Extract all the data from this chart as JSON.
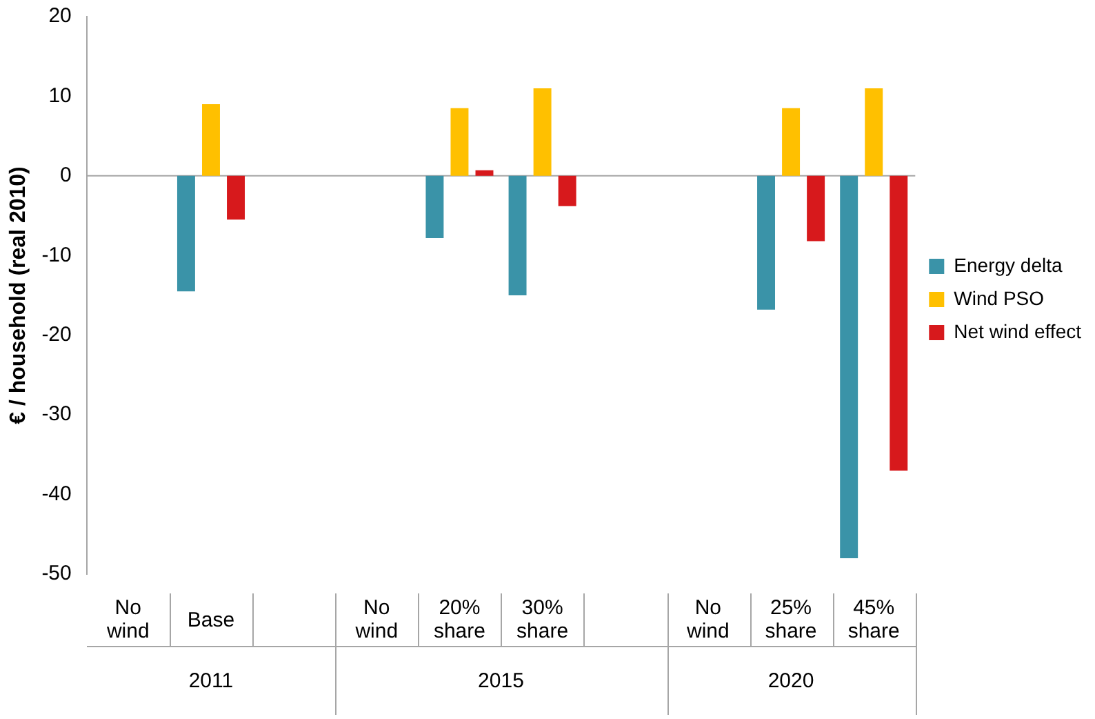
{
  "chart_data": {
    "type": "bar",
    "ylabel": "€ / household (real 2010)",
    "categories": [
      "No wind",
      "Base",
      null,
      "No wind",
      "20% share",
      "30% share",
      null,
      "No wind",
      "25% share",
      "45% share"
    ],
    "series": [
      {
        "name": "Energy delta",
        "color": "#3a93a8",
        "values": [
          null,
          -14.5,
          null,
          null,
          -7.8,
          -15,
          null,
          null,
          -16.8,
          -48
        ]
      },
      {
        "name": "Wind PSO",
        "color": "#ffc000",
        "values": [
          null,
          9,
          null,
          null,
          8.5,
          11,
          null,
          null,
          8.5,
          11
        ]
      },
      {
        "name": "Net wind effect",
        "color": "#d7191c",
        "values": [
          null,
          -5.5,
          null,
          null,
          0.7,
          -3.8,
          null,
          null,
          -8.2,
          -37
        ]
      }
    ],
    "ref_lines": [
      {
        "axis": "y",
        "value": 0,
        "color": "#a6a6a6",
        "line_style": "solid"
      }
    ],
    "ylim": [
      -50,
      20
    ],
    "yticks": [
      -50,
      -40,
      -30,
      -20,
      -10,
      0,
      10,
      20
    ],
    "grid": false,
    "legend": "right",
    "annotations": [
      "2011",
      "2015",
      "2020"
    ]
  }
}
